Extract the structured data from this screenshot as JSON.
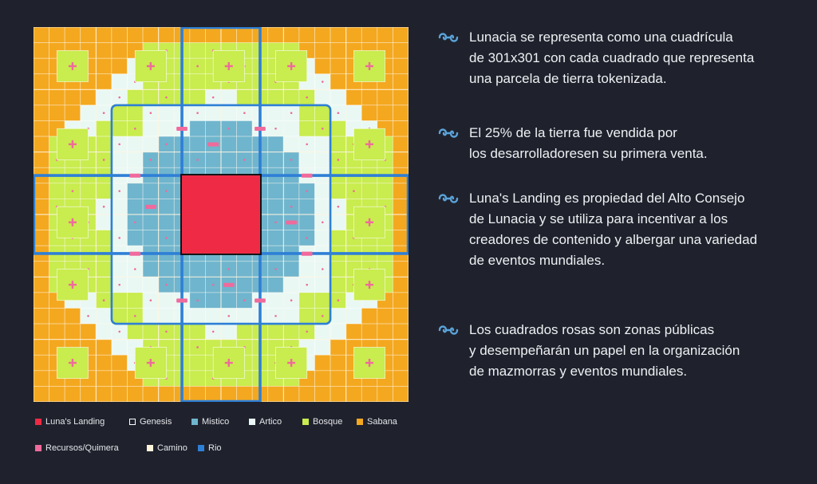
{
  "map": {
    "grid_size": 24,
    "colors": {
      "lunas_landing": "#ef2a45",
      "genesis": "#111111",
      "mistico": "#6fb5cd",
      "artico": "#eaf8f4",
      "bosque": "#c9ec4e",
      "sabana": "#f4a81f",
      "recursos": "#f06a9c",
      "camino": "#fff4dc",
      "rio": "#2e7fd6"
    }
  },
  "legend": [
    {
      "label": "Luna's Landing",
      "color": "#ef2a45"
    },
    {
      "label": "Genesis",
      "color": "#111111"
    },
    {
      "label": "Mistico",
      "color": "#6fb5cd"
    },
    {
      "label": "Artico",
      "color": "#eaf8f4"
    },
    {
      "label": "Bosque",
      "color": "#c9ec4e"
    },
    {
      "label": "Sabana",
      "color": "#f4a81f"
    },
    {
      "label": "Recursos/Quimera",
      "color": "#f06a9c"
    },
    {
      "label": "Camino",
      "color": "#fff4dc"
    },
    {
      "label": "Rio",
      "color": "#2e7fd6"
    }
  ],
  "points": {
    "icon": "swirl-icon",
    "icon_color": "#5aa3d9",
    "items": [
      {
        "text": "Lunacia se representa como una cuadrícula\nde 301x301 con cada cuadrado que representa\nuna parcela de tierra tokenizada."
      },
      {
        "text": "El 25% de la tierra fue vendida por\nlos desarrolladoresen su primera venta."
      },
      {
        "text": "Luna's Landing es propiedad del Alto Consejo\nde Lunacia y se utiliza para incentivar a los\ncreadores de contenido y albergar una variedad\nde eventos mundiales."
      },
      {
        "text": "Los cuadrados rosas son zonas públicas\ny desempeñarán un papel en la organización\nde mazmorras y eventos mundiales."
      }
    ]
  }
}
